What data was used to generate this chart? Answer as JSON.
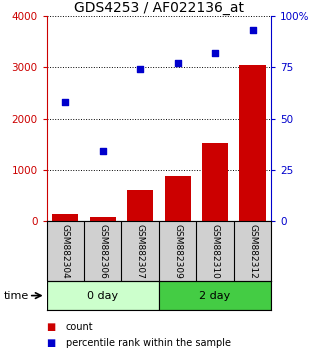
{
  "title": "GDS4253 / AF022136_at",
  "categories": [
    "GSM882304",
    "GSM882306",
    "GSM882307",
    "GSM882309",
    "GSM882310",
    "GSM882312"
  ],
  "counts": [
    150,
    80,
    600,
    880,
    1530,
    3050
  ],
  "percentiles": [
    58,
    34,
    74,
    77,
    82,
    93
  ],
  "bar_color": "#cc0000",
  "dot_color": "#0000cc",
  "ylim_left": [
    0,
    4000
  ],
  "ylim_right": [
    0,
    100
  ],
  "yticks_left": [
    0,
    1000,
    2000,
    3000,
    4000
  ],
  "yticks_right": [
    0,
    25,
    50,
    75,
    100
  ],
  "ytick_labels_right": [
    "0",
    "25",
    "50",
    "75",
    "100%"
  ],
  "group_colors": [
    "#ccffcc",
    "#44cc44"
  ],
  "groups": [
    {
      "label": "0 day",
      "indices": [
        0,
        1,
        2
      ]
    },
    {
      "label": "2 day",
      "indices": [
        3,
        4,
        5
      ]
    }
  ],
  "time_label": "time",
  "legend_count_label": "count",
  "legend_pct_label": "percentile rank within the sample",
  "tick_area_bg": "#d0d0d0",
  "title_fontsize": 10,
  "tick_fontsize": 7.5,
  "label_fontsize": 6.5,
  "group_fontsize": 8,
  "legend_fontsize": 7
}
